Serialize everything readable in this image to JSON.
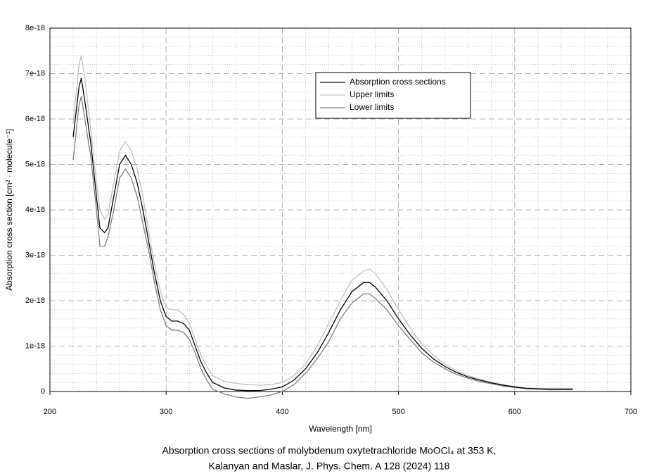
{
  "chart_data": {
    "type": "line",
    "x_label": "Wavelength [nm]",
    "y_label": "Absorption cross section [cm² · molecule⁻¹]",
    "caption": [
      "Absorption cross sections of molybdenum oxytetrachloride MoOCl₄ at 353 K,",
      "Kalanyan and Maslar, J. Phys. Chem. A 128 (2024) 118"
    ],
    "x": [
      220,
      225,
      227,
      230,
      235,
      240,
      243,
      247,
      250,
      255,
      260,
      265,
      270,
      275,
      280,
      285,
      290,
      295,
      300,
      305,
      310,
      315,
      320,
      325,
      330,
      335,
      340,
      350,
      360,
      370,
      380,
      390,
      400,
      410,
      420,
      430,
      440,
      450,
      460,
      470,
      475,
      480,
      490,
      500,
      510,
      520,
      530,
      540,
      550,
      560,
      570,
      580,
      590,
      600,
      610,
      620,
      630,
      640,
      650
    ],
    "series": [
      {
        "name": "Absorption cross sections",
        "color": "#000000",
        "values": [
          5.6e-18,
          6.7e-18,
          6.9e-18,
          6.4e-18,
          5.5e-18,
          4.3e-18,
          3.6e-18,
          3.5e-18,
          3.6e-18,
          4.3e-18,
          5e-18,
          5.2e-18,
          5e-18,
          4.6e-18,
          4e-18,
          3.3e-18,
          2.6e-18,
          2e-18,
          1.65e-18,
          1.55e-18,
          1.55e-18,
          1.5e-18,
          1.35e-18,
          1e-18,
          6.5e-19,
          4e-19,
          2e-19,
          8e-20,
          3e-20,
          2e-20,
          2e-20,
          5e-20,
          1e-19,
          2.5e-19,
          5e-19,
          8.5e-19,
          1.3e-18,
          1.8e-18,
          2.2e-18,
          2.4e-18,
          2.4e-18,
          2.3e-18,
          2e-18,
          1.6e-18,
          1.25e-18,
          9.5e-19,
          7.2e-19,
          5.5e-19,
          4.2e-19,
          3.2e-19,
          2.5e-19,
          1.9e-19,
          1.4e-19,
          1e-19,
          7e-20,
          6e-20,
          5e-20,
          5e-20,
          5e-20
        ]
      },
      {
        "name": "Upper limits",
        "color": "#c0c0c0",
        "values": [
          5.9e-18,
          7.2e-18,
          7.4e-18,
          6.9e-18,
          5.8e-18,
          4.6e-18,
          4e-18,
          3.8e-18,
          3.9e-18,
          4.6e-18,
          5.3e-18,
          5.5e-18,
          5.3e-18,
          4.9e-18,
          4.3e-18,
          3.5e-18,
          2.8e-18,
          2.2e-18,
          1.85e-18,
          1.8e-18,
          1.8e-18,
          1.7e-18,
          1.5e-18,
          1.15e-18,
          8e-19,
          5.5e-19,
          3.5e-19,
          2.2e-19,
          1.8e-19,
          1.5e-19,
          1.4e-19,
          1.5e-19,
          2e-19,
          3.5e-19,
          6e-19,
          1e-18,
          1.5e-18,
          2e-18,
          2.45e-18,
          2.65e-18,
          2.7e-18,
          2.6e-18,
          2.25e-18,
          1.8e-18,
          1.4e-18,
          1.05e-18,
          8e-19,
          6e-19,
          4.6e-19,
          3.5e-19,
          2.7e-19,
          2e-19,
          1.5e-19,
          1.1e-19,
          8e-20,
          7e-20,
          7e-20,
          7e-20,
          7e-20
        ]
      },
      {
        "name": "Lower limits",
        "color": "#808080",
        "values": [
          5.1e-18,
          6.3e-18,
          6.5e-18,
          6e-18,
          5.2e-18,
          4e-18,
          3.2e-18,
          3.2e-18,
          3.4e-18,
          4e-18,
          4.7e-18,
          4.9e-18,
          4.7e-18,
          4.3e-18,
          3.7e-18,
          3.1e-18,
          2.4e-18,
          1.8e-18,
          1.45e-18,
          1.35e-18,
          1.35e-18,
          1.3e-18,
          1.15e-18,
          8.5e-19,
          5e-19,
          2.5e-19,
          5e-20,
          -5e-20,
          -1.2e-19,
          -1.5e-19,
          -1.2e-19,
          -8e-20,
          0,
          1.5e-19,
          4e-19,
          7.2e-19,
          1.1e-18,
          1.6e-18,
          1.95e-18,
          2.15e-18,
          2.15e-18,
          2.05e-18,
          1.8e-18,
          1.45e-18,
          1.15e-18,
          8.5e-19,
          6.5e-19,
          5e-19,
          3.8e-19,
          2.9e-19,
          2.2e-19,
          1.7e-19,
          1.2e-19,
          9e-20,
          6e-20,
          5e-20,
          4e-20,
          4e-20,
          4e-20
        ]
      }
    ],
    "xlim": [
      200,
      700
    ],
    "xticks": [
      200,
      300,
      400,
      500,
      600,
      700
    ],
    "ylim": [
      0,
      8e-18
    ],
    "yticks": [
      0,
      1e-18,
      2e-18,
      3e-18,
      4e-18,
      5e-18,
      6e-18,
      7e-18,
      8e-18
    ],
    "grid": true,
    "legend": "upper right"
  }
}
